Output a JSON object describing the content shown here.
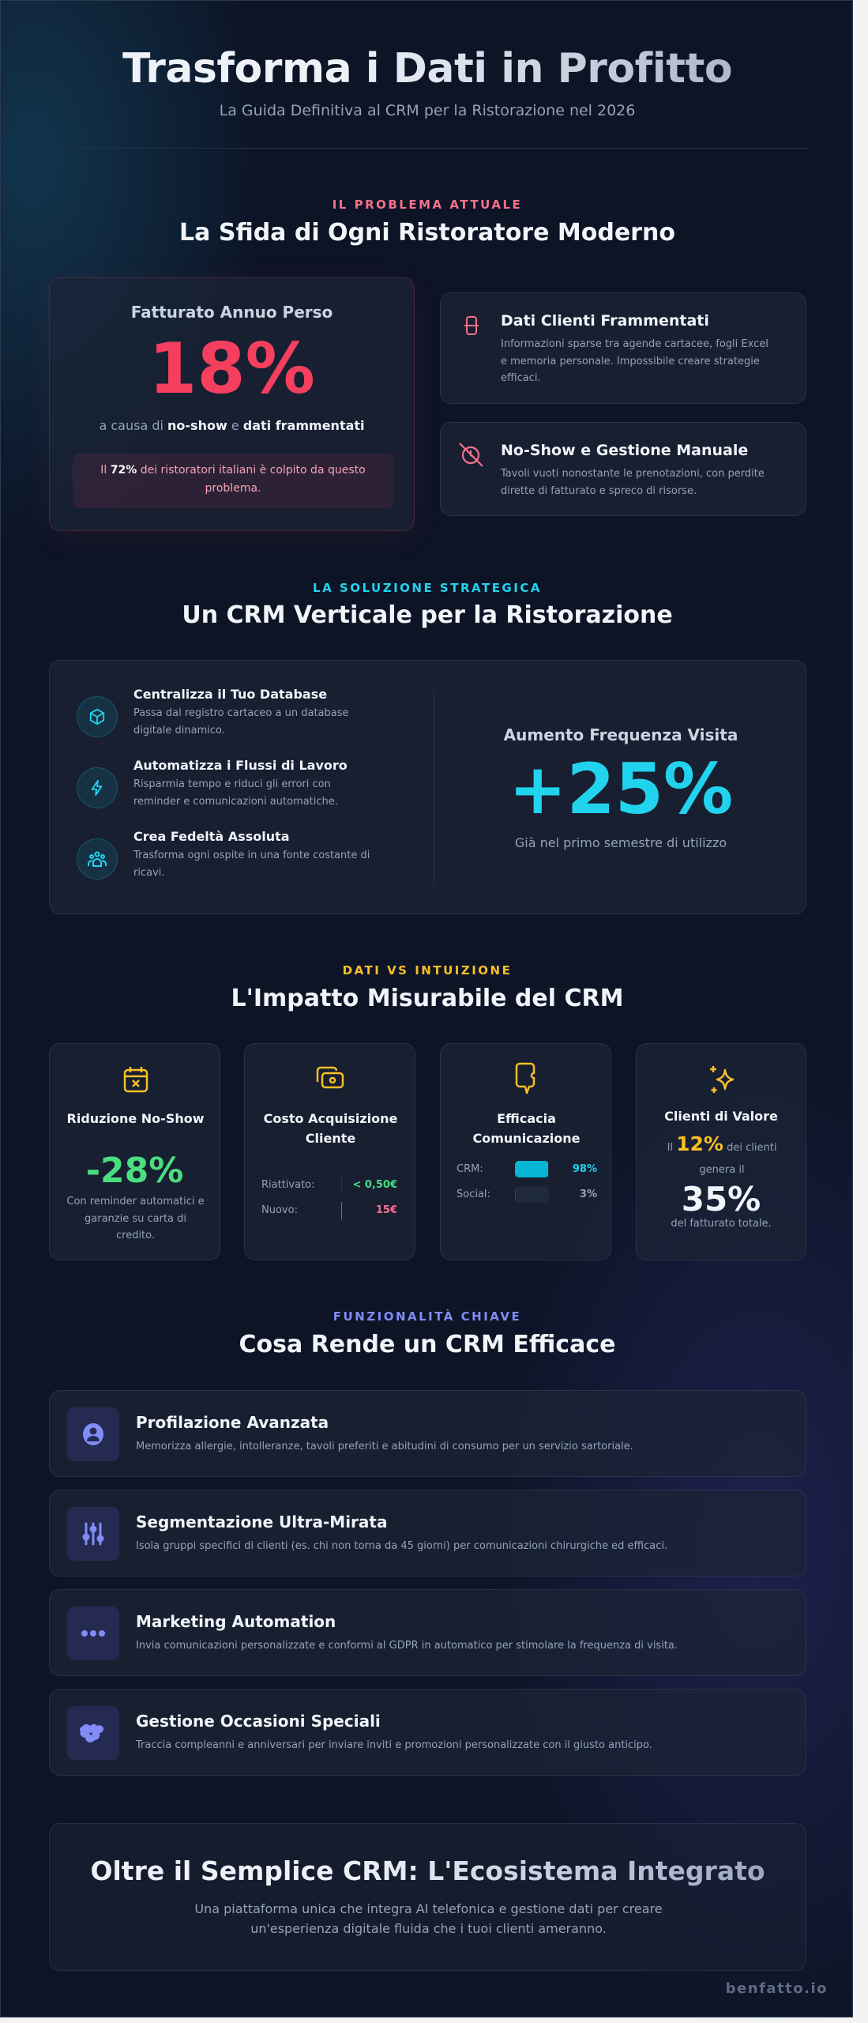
{
  "header": {
    "title": "Trasforma i Dati in Profitto",
    "subtitle": "La Guida Definitiva al CRM per la Ristorazione nel 2026"
  },
  "problem": {
    "label": "IL PROBLEMA ATTUALE",
    "title": "La Sfida di Ogni Ristoratore Moderno",
    "stat": {
      "heading": "Fatturato Annuo Perso",
      "value": "18%",
      "cause_pre": "a causa di ",
      "cause_b1": "no-show",
      "cause_mid": " e ",
      "cause_b2": "dati frammentati",
      "note_pre": "Il ",
      "note_b": "72%",
      "note_post": " dei ristoratori italiani è colpito da questo problema."
    },
    "issues": [
      {
        "icon": "database-icon",
        "title": "Dati Clienti Frammentati",
        "desc": "Informazioni sparse tra agende cartacee, fogli Excel e memoria personale. Impossibile creare strategie efficaci."
      },
      {
        "icon": "no-show-icon",
        "title": "No-Show e Gestione Manuale",
        "desc": "Tavoli vuoti nonostante le prenotazioni, con perdite dirette di fatturato e spreco di risorse."
      }
    ]
  },
  "solution": {
    "label": "LA SOLUZIONE STRATEGICA",
    "title": "Un CRM Verticale per la Ristorazione",
    "items": [
      {
        "icon": "cube-icon",
        "title": "Centralizza il Tuo Database",
        "desc": "Passa dal registro cartaceo a un database digitale dinamico."
      },
      {
        "icon": "lightning-icon",
        "title": "Automatizza i Flussi di Lavoro",
        "desc": "Risparmia tempo e riduci gli errori con reminder e comunicazioni automatiche."
      },
      {
        "icon": "users-icon",
        "title": "Crea Fedeltà Assoluta",
        "desc": "Trasforma ogni ospite in una fonte costante di ricavi."
      }
    ],
    "stat": {
      "heading": "Aumento Frequenza Visita",
      "value": "+25%",
      "caption": "Già nel primo semestre di utilizzo"
    }
  },
  "impact": {
    "label": "DATI VS INTUIZIONE",
    "title": "L'Impatto Misurabile del CRM",
    "cards": [
      {
        "icon": "calendar-x-icon",
        "title": "Riduzione No-Show",
        "value": "-28%",
        "desc": "Con reminder automatici e garanzie su carta di credito."
      },
      {
        "icon": "cash-icon",
        "title": "Costo Acquisizione Cliente",
        "rows": [
          {
            "label": "Riattivato:",
            "value": "< 0,50€"
          },
          {
            "label": "Nuovo:",
            "value": "15€"
          }
        ]
      },
      {
        "icon": "chat-icon",
        "title": "Efficacia Comunicazione",
        "rows": [
          {
            "label": "CRM:",
            "value": "98%",
            "pct": 98
          },
          {
            "label": "Social:",
            "value": "3%",
            "pct": 3
          }
        ]
      },
      {
        "icon": "sparkles-icon",
        "title": "Clienti di Valore",
        "pre": "Il ",
        "highlight": "12%",
        "post": " dei clienti genera il",
        "value": "35%",
        "desc": "del fatturato totale."
      }
    ]
  },
  "features": {
    "label": "FUNZIONALITÀ CHIAVE",
    "title": "Cosa Rende un CRM Efficace",
    "items": [
      {
        "icon": "user-circle-icon",
        "title": "Profilazione Avanzata",
        "desc": "Memorizza allergie, intolleranze, tavoli preferiti e abitudini di consumo per un servizio sartoriale."
      },
      {
        "icon": "sliders-icon",
        "title": "Segmentazione Ultra-Mirata",
        "desc": "Isola gruppi specifici di clienti (es. chi non torna da 45 giorni) per comunicazioni chirurgiche ed efficaci."
      },
      {
        "icon": "dots-icon",
        "title": "Marketing Automation",
        "desc": "Invia comunicazioni personalizzate e conformi al GDPR in automatico per stimolare la frequenza di visita."
      },
      {
        "icon": "gift-icon",
        "title": "Gestione Occasioni Speciali",
        "desc": "Traccia compleanni e anniversari per inviare inviti e promozioni personalizzate con il giusto anticipo."
      }
    ]
  },
  "cta": {
    "title": "Oltre il Semplice CRM: L'Ecosistema Integrato",
    "desc": "Una piattaforma unica che integra AI telefonica e gestione dati per creare un'esperienza digitale fluida che i tuoi clienti ameranno."
  },
  "footer": {
    "brand": "benfatto.io"
  },
  "colors": {
    "problem": "#f43f5e",
    "solution": "#22d3ee",
    "impact": "#fbbf24",
    "features": "#818cf8",
    "green": "#4ade80"
  }
}
